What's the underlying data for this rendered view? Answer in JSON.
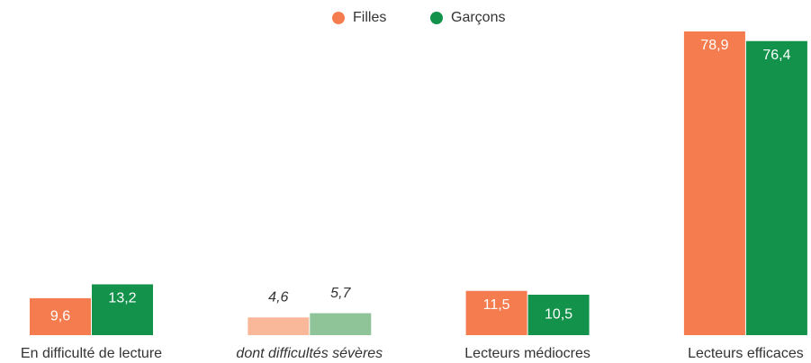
{
  "chart_data": {
    "type": "bar",
    "categories": [
      "En difficulté de lecture",
      "dont difficultés sévères",
      "Lecteurs médiocres",
      "Lecteurs efficaces"
    ],
    "italic": [
      false,
      true,
      false,
      false
    ],
    "series": [
      {
        "name": "Filles",
        "color": "#f47c4e",
        "colors": [
          "#f47c4e",
          "#f9b899",
          "#f47c4e",
          "#f47c4e"
        ],
        "values": [
          9.6,
          4.6,
          11.5,
          78.9
        ],
        "value_labels": [
          "9,6",
          "4,6",
          "11,5",
          "78,9"
        ]
      },
      {
        "name": "Garçons",
        "color": "#12924a",
        "colors": [
          "#12924a",
          "#8fc498",
          "#12924a",
          "#12924a"
        ],
        "values": [
          13.2,
          5.7,
          10.5,
          76.4
        ],
        "value_labels": [
          "13,2",
          "5,7",
          "10,5",
          "76,4"
        ]
      }
    ]
  }
}
